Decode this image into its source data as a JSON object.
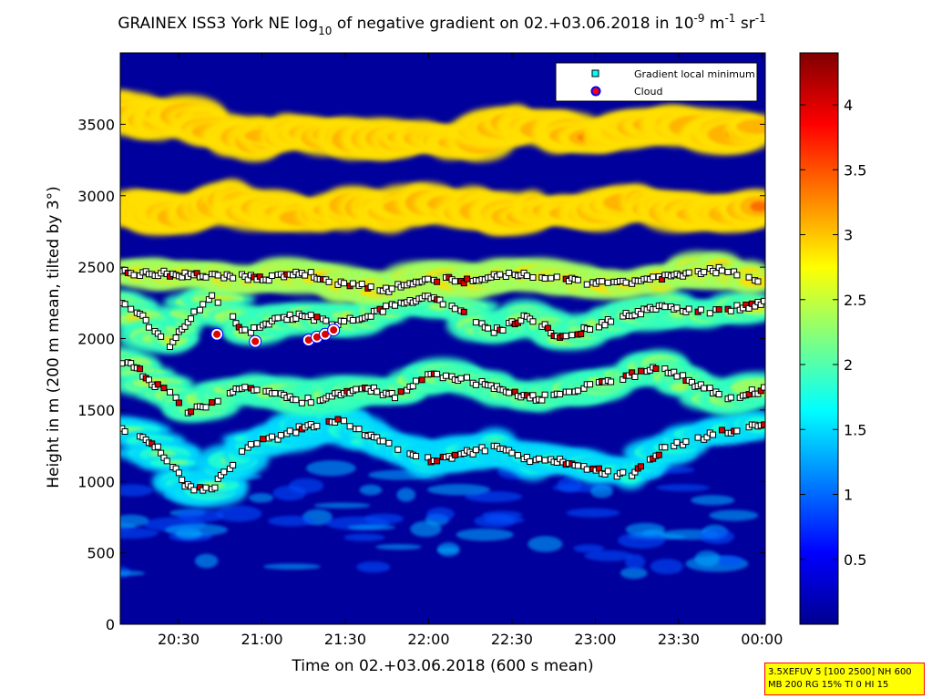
{
  "chart_data": {
    "type": "heatmap",
    "title": {
      "prefix": "GRAINEX ISS3 York NE log",
      "sub": "10",
      "middle": " of negative gradient on 02.+03.06.2018 in 10",
      "sup1": "-9",
      "mid2": " m",
      "sup2": "-1",
      "mid3": " sr",
      "sup3": "-1"
    },
    "xlabel": "Time on 02.+03.06.2018 (600 s mean)",
    "ylabel": "Height in m (200 m mean, tilted by 3°)",
    "x_range_hours": [
      20.15,
      24.02
    ],
    "ylim": [
      0,
      4000
    ],
    "x_ticks": [
      {
        "label": "20:30",
        "h": 20.5
      },
      {
        "label": "21:00",
        "h": 21.0
      },
      {
        "label": "21:30",
        "h": 21.5
      },
      {
        "label": "22:00",
        "h": 22.0
      },
      {
        "label": "22:30",
        "h": 22.5
      },
      {
        "label": "23:00",
        "h": 23.0
      },
      {
        "label": "23:30",
        "h": 23.5
      },
      {
        "label": "00:00",
        "h": 24.0
      }
    ],
    "y_ticks": [
      {
        "label": "0",
        "v": 0
      },
      {
        "label": "500",
        "v": 500
      },
      {
        "label": "1000",
        "v": 1000
      },
      {
        "label": "1500",
        "v": 1500
      },
      {
        "label": "2000",
        "v": 2000
      },
      {
        "label": "2500",
        "v": 2500
      },
      {
        "label": "3000",
        "v": 3000
      },
      {
        "label": "3500",
        "v": 3500
      }
    ],
    "colorbar": {
      "range": [
        0,
        4.4
      ],
      "ticks": [
        {
          "label": "0.5",
          "v": 0.5
        },
        {
          "label": "1",
          "v": 1
        },
        {
          "label": "1.5",
          "v": 1.5
        },
        {
          "label": "2",
          "v": 2
        },
        {
          "label": "2.5",
          "v": 2.5
        },
        {
          "label": "3",
          "v": 3
        },
        {
          "label": "3.5",
          "v": 3.5
        },
        {
          "label": "4",
          "v": 4
        }
      ],
      "colormap": "jet"
    },
    "legend": {
      "position": "top-right",
      "items": [
        {
          "label": "Gradient local minimum",
          "marker": "square",
          "color": "#00ffff"
        },
        {
          "label": "Cloud",
          "marker": "circle",
          "color": "#ff0000",
          "edge": "#0000ff"
        }
      ]
    },
    "layer_traces": [
      {
        "name": "layer-1",
        "points": [
          [
            20.15,
            1360
          ],
          [
            20.25,
            1330
          ],
          [
            20.35,
            1260
          ],
          [
            20.45,
            1130
          ],
          [
            20.55,
            960
          ],
          [
            20.7,
            950
          ],
          [
            20.9,
            1240
          ],
          [
            21.1,
            1310
          ],
          [
            21.25,
            1380
          ],
          [
            21.45,
            1430
          ],
          [
            21.6,
            1340
          ],
          [
            21.8,
            1230
          ],
          [
            22.0,
            1150
          ],
          [
            22.2,
            1190
          ],
          [
            22.4,
            1240
          ],
          [
            22.6,
            1150
          ],
          [
            22.8,
            1140
          ],
          [
            23.0,
            1080
          ],
          [
            23.2,
            1040
          ],
          [
            23.4,
            1220
          ],
          [
            23.6,
            1300
          ],
          [
            23.8,
            1350
          ],
          [
            24.0,
            1410
          ]
        ]
      },
      {
        "name": "layer-2",
        "points": [
          [
            20.15,
            1850
          ],
          [
            20.25,
            1790
          ],
          [
            20.35,
            1680
          ],
          [
            20.45,
            1620
          ],
          [
            20.55,
            1470
          ],
          [
            20.7,
            1560
          ],
          [
            20.9,
            1660
          ],
          [
            21.1,
            1610
          ],
          [
            21.25,
            1560
          ],
          [
            21.45,
            1600
          ],
          [
            21.6,
            1660
          ],
          [
            21.8,
            1600
          ],
          [
            22.0,
            1760
          ],
          [
            22.2,
            1720
          ],
          [
            22.4,
            1660
          ],
          [
            22.6,
            1580
          ],
          [
            22.8,
            1600
          ],
          [
            23.0,
            1680
          ],
          [
            23.2,
            1740
          ],
          [
            23.4,
            1800
          ],
          [
            23.6,
            1680
          ],
          [
            23.8,
            1580
          ],
          [
            24.0,
            1640
          ]
        ]
      },
      {
        "name": "layer-3",
        "points": [
          [
            20.15,
            2240
          ],
          [
            20.25,
            2200
          ],
          [
            20.35,
            2050
          ],
          [
            20.45,
            1960
          ],
          [
            20.55,
            2120
          ],
          [
            20.7,
            2300
          ],
          [
            20.9,
            2040
          ],
          [
            21.1,
            2140
          ],
          [
            21.25,
            2160
          ],
          [
            21.45,
            2110
          ],
          [
            21.6,
            2140
          ],
          [
            21.8,
            2240
          ],
          [
            22.0,
            2290
          ],
          [
            22.2,
            2180
          ],
          [
            22.4,
            2050
          ],
          [
            22.6,
            2160
          ],
          [
            22.8,
            2000
          ],
          [
            23.0,
            2090
          ],
          [
            23.2,
            2170
          ],
          [
            23.4,
            2220
          ],
          [
            23.6,
            2180
          ],
          [
            23.8,
            2200
          ],
          [
            24.0,
            2250
          ]
        ]
      },
      {
        "name": "layer-4",
        "points": [
          [
            20.25,
            2460
          ],
          [
            20.5,
            2450
          ],
          [
            20.75,
            2440
          ],
          [
            21.0,
            2420
          ],
          [
            21.25,
            2460
          ],
          [
            21.5,
            2380
          ],
          [
            21.75,
            2340
          ],
          [
            22.0,
            2420
          ],
          [
            22.25,
            2400
          ],
          [
            22.5,
            2460
          ],
          [
            22.75,
            2430
          ],
          [
            23.0,
            2380
          ],
          [
            23.25,
            2400
          ],
          [
            23.5,
            2450
          ],
          [
            23.75,
            2480
          ],
          [
            24.0,
            2400
          ]
        ]
      },
      {
        "name": "layer-5",
        "points": [
          [
            20.15,
            2920
          ],
          [
            20.35,
            2860
          ],
          [
            20.55,
            2880
          ],
          [
            20.75,
            2960
          ],
          [
            21.0,
            2900
          ],
          [
            21.25,
            2860
          ],
          [
            21.5,
            2920
          ],
          [
            21.75,
            2880
          ],
          [
            22.0,
            2960
          ],
          [
            22.25,
            2900
          ],
          [
            22.5,
            2860
          ],
          [
            22.75,
            2920
          ],
          [
            23.0,
            2880
          ],
          [
            23.25,
            2960
          ],
          [
            23.5,
            2900
          ],
          [
            23.75,
            2860
          ],
          [
            24.0,
            2940
          ]
        ]
      },
      {
        "name": "layer-6",
        "points": [
          [
            20.15,
            3600
          ],
          [
            20.35,
            3540
          ],
          [
            20.55,
            3560
          ],
          [
            20.75,
            3420
          ],
          [
            21.0,
            3380
          ],
          [
            21.25,
            3460
          ],
          [
            21.5,
            3400
          ],
          [
            21.75,
            3380
          ],
          [
            22.0,
            3420
          ],
          [
            22.25,
            3360
          ],
          [
            22.5,
            3520
          ],
          [
            22.75,
            3460
          ],
          [
            23.0,
            3400
          ],
          [
            23.25,
            3460
          ],
          [
            23.5,
            3520
          ],
          [
            23.75,
            3420
          ],
          [
            24.0,
            3480
          ]
        ]
      }
    ],
    "cloud_points": [
      {
        "x": 20.73,
        "y": 2030
      },
      {
        "x": 20.96,
        "y": 1980
      },
      {
        "x": 21.28,
        "y": 1990
      },
      {
        "x": 21.33,
        "y": 2010
      },
      {
        "x": 21.38,
        "y": 2030
      },
      {
        "x": 21.43,
        "y": 2060
      }
    ]
  },
  "info_box": {
    "line1": "3.5XEFUV 5 [100 2500] NH 600",
    "line2": "MB 200 RG 15% TI 0 HI 15"
  }
}
